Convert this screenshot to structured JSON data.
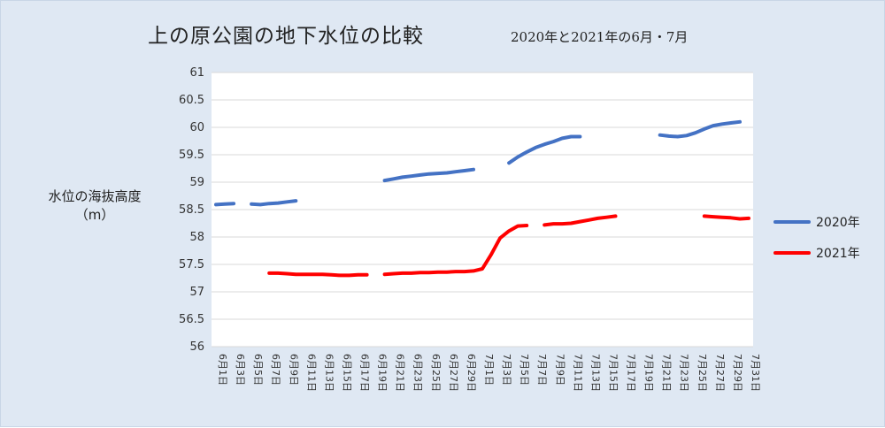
{
  "chart_data": {
    "type": "line",
    "title": "上の原公園の地下水位の比較",
    "subtitle": "2020年と2021年の6月・7月",
    "ylabel": "水位の海抜高度",
    "ylabel_unit": "（m）",
    "ylim": [
      56,
      61
    ],
    "yticks": [
      "56",
      "56.5",
      "57",
      "57.5",
      "58",
      "58.5",
      "59",
      "59.5",
      "60",
      "60.5",
      "61"
    ],
    "x": [
      "6月1日",
      "6月2日",
      "6月3日",
      "6月4日",
      "6月5日",
      "6月6日",
      "6月7日",
      "6月8日",
      "6月9日",
      "6月10日",
      "6月11日",
      "6月12日",
      "6月13日",
      "6月14日",
      "6月15日",
      "6月16日",
      "6月17日",
      "6月18日",
      "6月19日",
      "6月20日",
      "6月21日",
      "6月22日",
      "6月23日",
      "6月24日",
      "6月25日",
      "6月26日",
      "6月27日",
      "6月28日",
      "6月29日",
      "6月30日",
      "7月1日",
      "7月2日",
      "7月3日",
      "7月4日",
      "7月5日",
      "7月6日",
      "7月7日",
      "7月8日",
      "7月9日",
      "7月10日",
      "7月11日",
      "7月12日",
      "7月13日",
      "7月14日",
      "7月15日",
      "7月16日",
      "7月17日",
      "7月18日",
      "7月19日",
      "7月20日",
      "7月21日",
      "7月22日",
      "7月23日",
      "7月24日",
      "7月25日",
      "7月26日",
      "7月27日",
      "7月28日",
      "7月29日",
      "7月30日",
      "7月31日"
    ],
    "xtick_labels": [
      "6月1日",
      "6月3日",
      "6月5日",
      "6月7日",
      "6月9日",
      "6月11日",
      "6月13日",
      "6月15日",
      "6月17日",
      "6月19日",
      "6月21日",
      "6月23日",
      "6月25日",
      "6月27日",
      "6月29日",
      "7月1日",
      "7月3日",
      "7月5日",
      "7月7日",
      "7月9日",
      "7月11日",
      "7月13日",
      "7月15日",
      "7月17日",
      "7月19日",
      "7月21日",
      "7月23日",
      "7月25日",
      "7月27日",
      "7月29日",
      "7月31日"
    ],
    "grid": true,
    "legend_position": "right",
    "series": [
      {
        "name": "2020年",
        "color": "#4472c4",
        "values": [
          58.59,
          58.6,
          58.61,
          null,
          58.6,
          58.59,
          58.61,
          58.62,
          58.64,
          58.66,
          null,
          null,
          null,
          null,
          null,
          null,
          null,
          null,
          null,
          59.03,
          59.06,
          59.09,
          59.11,
          59.13,
          59.15,
          59.16,
          59.17,
          59.19,
          59.21,
          59.23,
          null,
          null,
          null,
          59.35,
          59.46,
          59.55,
          59.63,
          59.69,
          59.74,
          59.8,
          59.83,
          59.83,
          null,
          null,
          null,
          null,
          null,
          null,
          null,
          null,
          59.86,
          59.84,
          59.83,
          59.85,
          59.9,
          59.97,
          60.03,
          60.06,
          60.08,
          60.1,
          null
        ]
      },
      {
        "name": "2021年",
        "color": "#ff0000",
        "values": [
          null,
          null,
          null,
          null,
          null,
          null,
          57.34,
          57.34,
          57.33,
          57.32,
          57.32,
          57.32,
          57.32,
          57.31,
          57.3,
          57.3,
          57.31,
          57.31,
          null,
          57.32,
          57.33,
          57.34,
          57.34,
          57.35,
          57.35,
          57.36,
          57.36,
          57.37,
          57.37,
          57.38,
          57.42,
          57.68,
          57.98,
          58.11,
          58.2,
          58.21,
          null,
          58.22,
          58.24,
          58.24,
          58.25,
          58.28,
          58.31,
          58.34,
          58.36,
          58.38,
          null,
          null,
          null,
          null,
          null,
          null,
          null,
          null,
          null,
          58.38,
          58.37,
          58.36,
          58.35,
          58.33,
          58.34
        ]
      }
    ]
  }
}
